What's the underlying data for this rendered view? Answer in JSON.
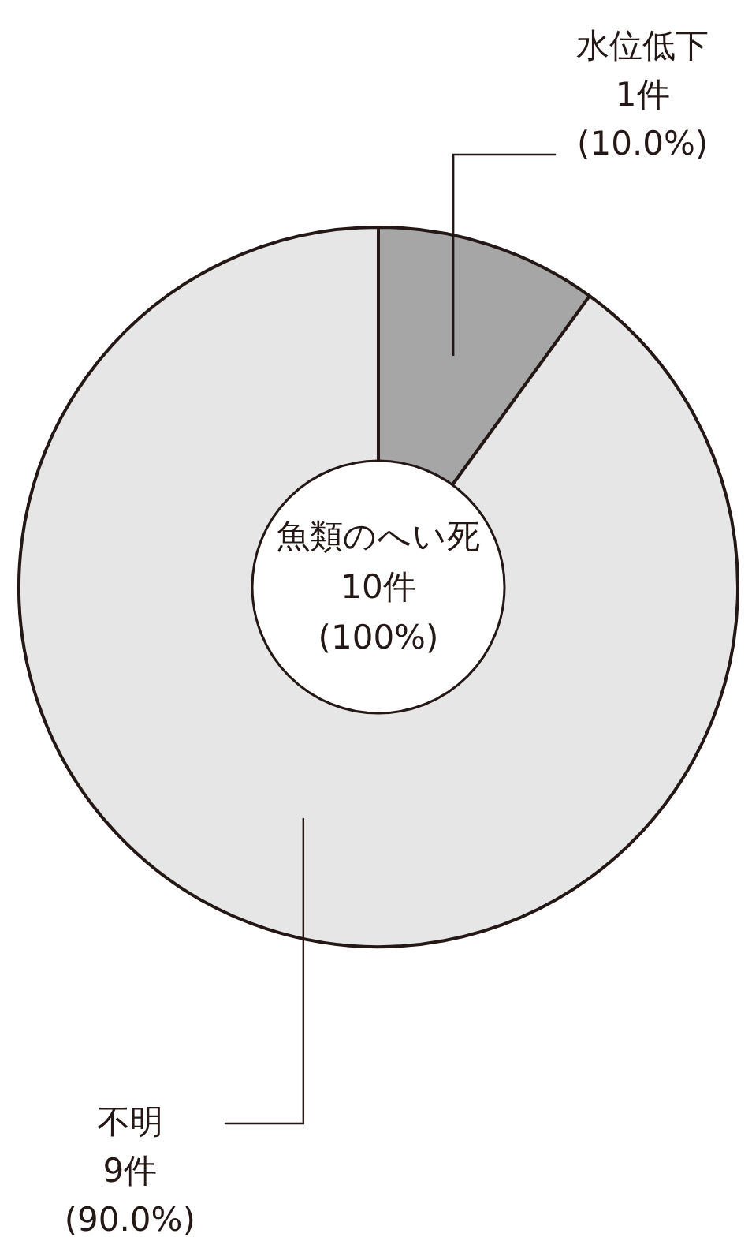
{
  "chart_data": {
    "type": "donut",
    "categories": [
      "水位低下",
      "不明"
    ],
    "values": [
      1,
      9
    ],
    "colors": [
      "#a6a6a6",
      "#e6e6e6"
    ],
    "value_labels": [
      "1件\n(10.0%)",
      "9件\n(90.0%)"
    ],
    "annotations": [
      "魚類のへい死\n10件\n(100%)"
    ]
  }
}
